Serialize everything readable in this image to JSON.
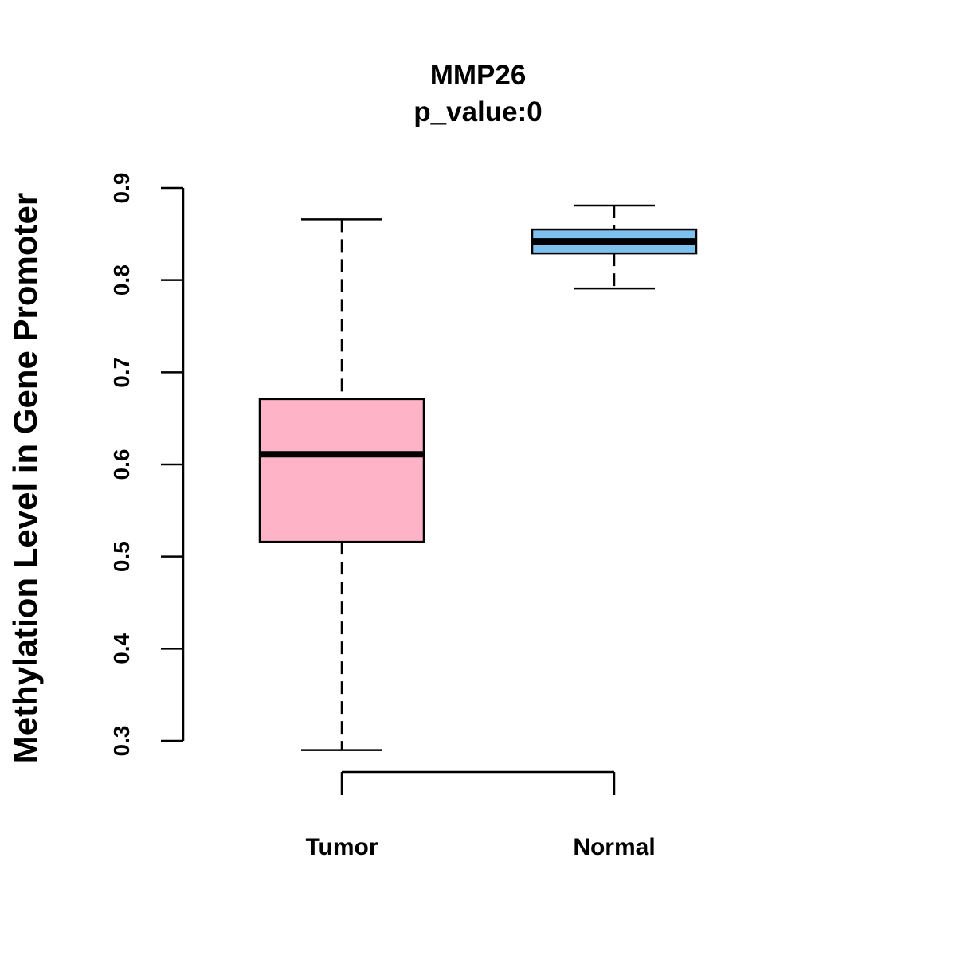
{
  "chart_data": {
    "type": "boxplot",
    "title": "MMP26",
    "subtitle": "p_value:0",
    "xlabel": "",
    "ylabel": "Methylation Level in Gene Promoter",
    "ylim": [
      0.3,
      0.9
    ],
    "yticks": [
      "0.3",
      "0.4",
      "0.5",
      "0.6",
      "0.7",
      "0.8",
      "0.9"
    ],
    "categories": [
      "Tumor",
      "Normal"
    ],
    "series": [
      {
        "name": "Tumor",
        "color": "#FFB3C6",
        "whisker_low": 0.29,
        "q1": 0.516,
        "median": 0.611,
        "q3": 0.671,
        "whisker_high": 0.866
      },
      {
        "name": "Normal",
        "color": "#7EC0EE",
        "whisker_low": 0.791,
        "q1": 0.829,
        "median": 0.842,
        "q3": 0.855,
        "whisker_high": 0.881
      }
    ],
    "grid": false,
    "legend": "none"
  }
}
